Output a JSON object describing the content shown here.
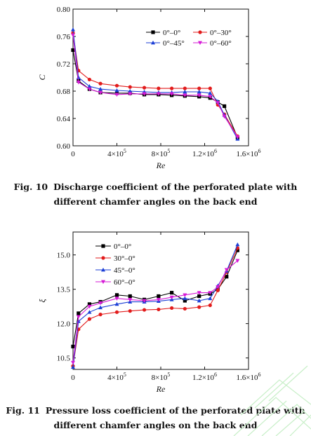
{
  "chart_data": [
    {
      "type": "line",
      "ylabel": "C",
      "xlabel": "Re",
      "xlim": [
        0,
        1600000
      ],
      "ylim": [
        0.6,
        0.8
      ],
      "yticks": [
        0.6,
        0.64,
        0.68,
        0.72,
        0.76,
        0.8
      ],
      "ytick_labels": [
        "0.60",
        "0.64",
        "0.68",
        "0.72",
        "0.76",
        "0.80"
      ],
      "xticks": [
        0,
        400000,
        800000,
        1200000,
        1600000
      ],
      "xtick_labels": [
        {
          "base": "0",
          "exp": ""
        },
        {
          "base": "4×10",
          "exp": "5"
        },
        {
          "base": "8×10",
          "exp": "5"
        },
        {
          "base": "1.2×10",
          "exp": "6"
        },
        {
          "base": "1.6×10",
          "exp": "6"
        }
      ],
      "legend_placement": "top-right",
      "caption": {
        "number": "Fig. 10",
        "line1": "Discharge coefficient of the perforated plate with",
        "line2": "different chamfer angles on the back end"
      },
      "series": [
        {
          "name": "0°–0°",
          "color": "#000000",
          "marker": "square",
          "x": [
            0,
            50000,
            150000,
            250000,
            400000,
            520000,
            650000,
            780000,
            900000,
            1020000,
            1150000,
            1250000,
            1320000,
            1380000,
            1500000
          ],
          "y": [
            0.74,
            0.695,
            0.683,
            0.678,
            0.677,
            0.677,
            0.675,
            0.675,
            0.674,
            0.673,
            0.672,
            0.67,
            0.664,
            0.658,
            0.612
          ]
        },
        {
          "name": "0°–30°",
          "color": "#e21b1b",
          "marker": "circle",
          "x": [
            0,
            50000,
            150000,
            250000,
            400000,
            520000,
            650000,
            780000,
            900000,
            1020000,
            1150000,
            1250000,
            1320000,
            1380000,
            1500000
          ],
          "y": [
            0.765,
            0.71,
            0.697,
            0.691,
            0.688,
            0.686,
            0.685,
            0.684,
            0.684,
            0.684,
            0.684,
            0.684,
            0.66,
            0.646,
            0.614
          ]
        },
        {
          "name": "0°–45°",
          "color": "#1c3fd6",
          "marker": "triangle",
          "x": [
            0,
            50000,
            150000,
            250000,
            400000,
            520000,
            650000,
            780000,
            900000,
            1020000,
            1150000,
            1250000,
            1320000,
            1380000,
            1500000
          ],
          "y": [
            0.77,
            0.7,
            0.687,
            0.683,
            0.681,
            0.68,
            0.679,
            0.678,
            0.678,
            0.679,
            0.679,
            0.677,
            0.665,
            0.645,
            0.61
          ]
        },
        {
          "name": "0°–60°",
          "color": "#d61ad6",
          "marker": "triangle-down",
          "x": [
            0,
            50000,
            150000,
            250000,
            400000,
            520000,
            650000,
            780000,
            900000,
            1020000,
            1150000,
            1250000,
            1320000,
            1380000,
            1500000
          ],
          "y": [
            0.762,
            0.693,
            0.683,
            0.678,
            0.675,
            0.676,
            0.676,
            0.676,
            0.676,
            0.674,
            0.674,
            0.672,
            0.663,
            0.643,
            0.613
          ]
        }
      ]
    },
    {
      "type": "line",
      "ylabel": "ξ",
      "xlabel": "Re",
      "xlim": [
        0,
        1600000
      ],
      "ylim": [
        10.0,
        16.0
      ],
      "yticks": [
        10.5,
        12.0,
        13.5,
        15.0
      ],
      "ytick_labels": [
        "10.5",
        "12.0",
        "13.5",
        "15.0"
      ],
      "xticks": [
        0,
        400000,
        800000,
        1200000,
        1600000
      ],
      "xtick_labels": [
        {
          "base": "0",
          "exp": ""
        },
        {
          "base": "4×10",
          "exp": "5"
        },
        {
          "base": "8×10",
          "exp": "5"
        },
        {
          "base": "1.2×10",
          "exp": "6"
        },
        {
          "base": "1.6×10",
          "exp": "6"
        }
      ],
      "legend_placement": "top-left",
      "caption": {
        "number": "Fig. 11",
        "line1": "Pressure loss coefficient of the perforated plate with",
        "line2": "different chamfer angles on the back end"
      },
      "series": [
        {
          "name": "0°–0°",
          "color": "#000000",
          "marker": "square",
          "x": [
            0,
            50000,
            150000,
            250000,
            400000,
            520000,
            650000,
            780000,
            900000,
            1020000,
            1150000,
            1250000,
            1320000,
            1400000,
            1500000
          ],
          "y": [
            11.0,
            12.45,
            12.85,
            12.95,
            13.25,
            13.2,
            13.05,
            13.2,
            13.35,
            13.0,
            13.2,
            13.3,
            13.5,
            14.05,
            15.2
          ]
        },
        {
          "name": "30°–0°",
          "color": "#e21b1b",
          "marker": "circle",
          "x": [
            0,
            50000,
            150000,
            250000,
            400000,
            520000,
            650000,
            780000,
            900000,
            1020000,
            1150000,
            1250000,
            1320000,
            1400000,
            1500000
          ],
          "y": [
            10.15,
            11.75,
            12.2,
            12.4,
            12.5,
            12.55,
            12.6,
            12.62,
            12.68,
            12.65,
            12.72,
            12.8,
            13.45,
            14.25,
            15.3
          ]
        },
        {
          "name": "45°–0°",
          "color": "#1c3fd6",
          "marker": "triangle",
          "x": [
            0,
            50000,
            150000,
            250000,
            400000,
            520000,
            650000,
            780000,
            900000,
            1020000,
            1150000,
            1250000,
            1320000,
            1400000,
            1500000
          ],
          "y": [
            10.1,
            12.1,
            12.5,
            12.7,
            12.85,
            12.95,
            12.95,
            12.98,
            13.05,
            13.1,
            13.0,
            13.1,
            13.65,
            14.3,
            15.45
          ]
        },
        {
          "name": "60°–0°",
          "color": "#d61ad6",
          "marker": "triangle-down",
          "x": [
            0,
            50000,
            150000,
            250000,
            400000,
            520000,
            650000,
            780000,
            900000,
            1020000,
            1150000,
            1250000,
            1320000,
            1400000,
            1500000
          ],
          "y": [
            10.3,
            12.3,
            12.75,
            12.9,
            13.1,
            13.05,
            13.0,
            13.05,
            13.15,
            13.25,
            13.35,
            13.35,
            13.6,
            14.35,
            14.75
          ]
        }
      ]
    }
  ],
  "watermark_color": "#c8efc8"
}
